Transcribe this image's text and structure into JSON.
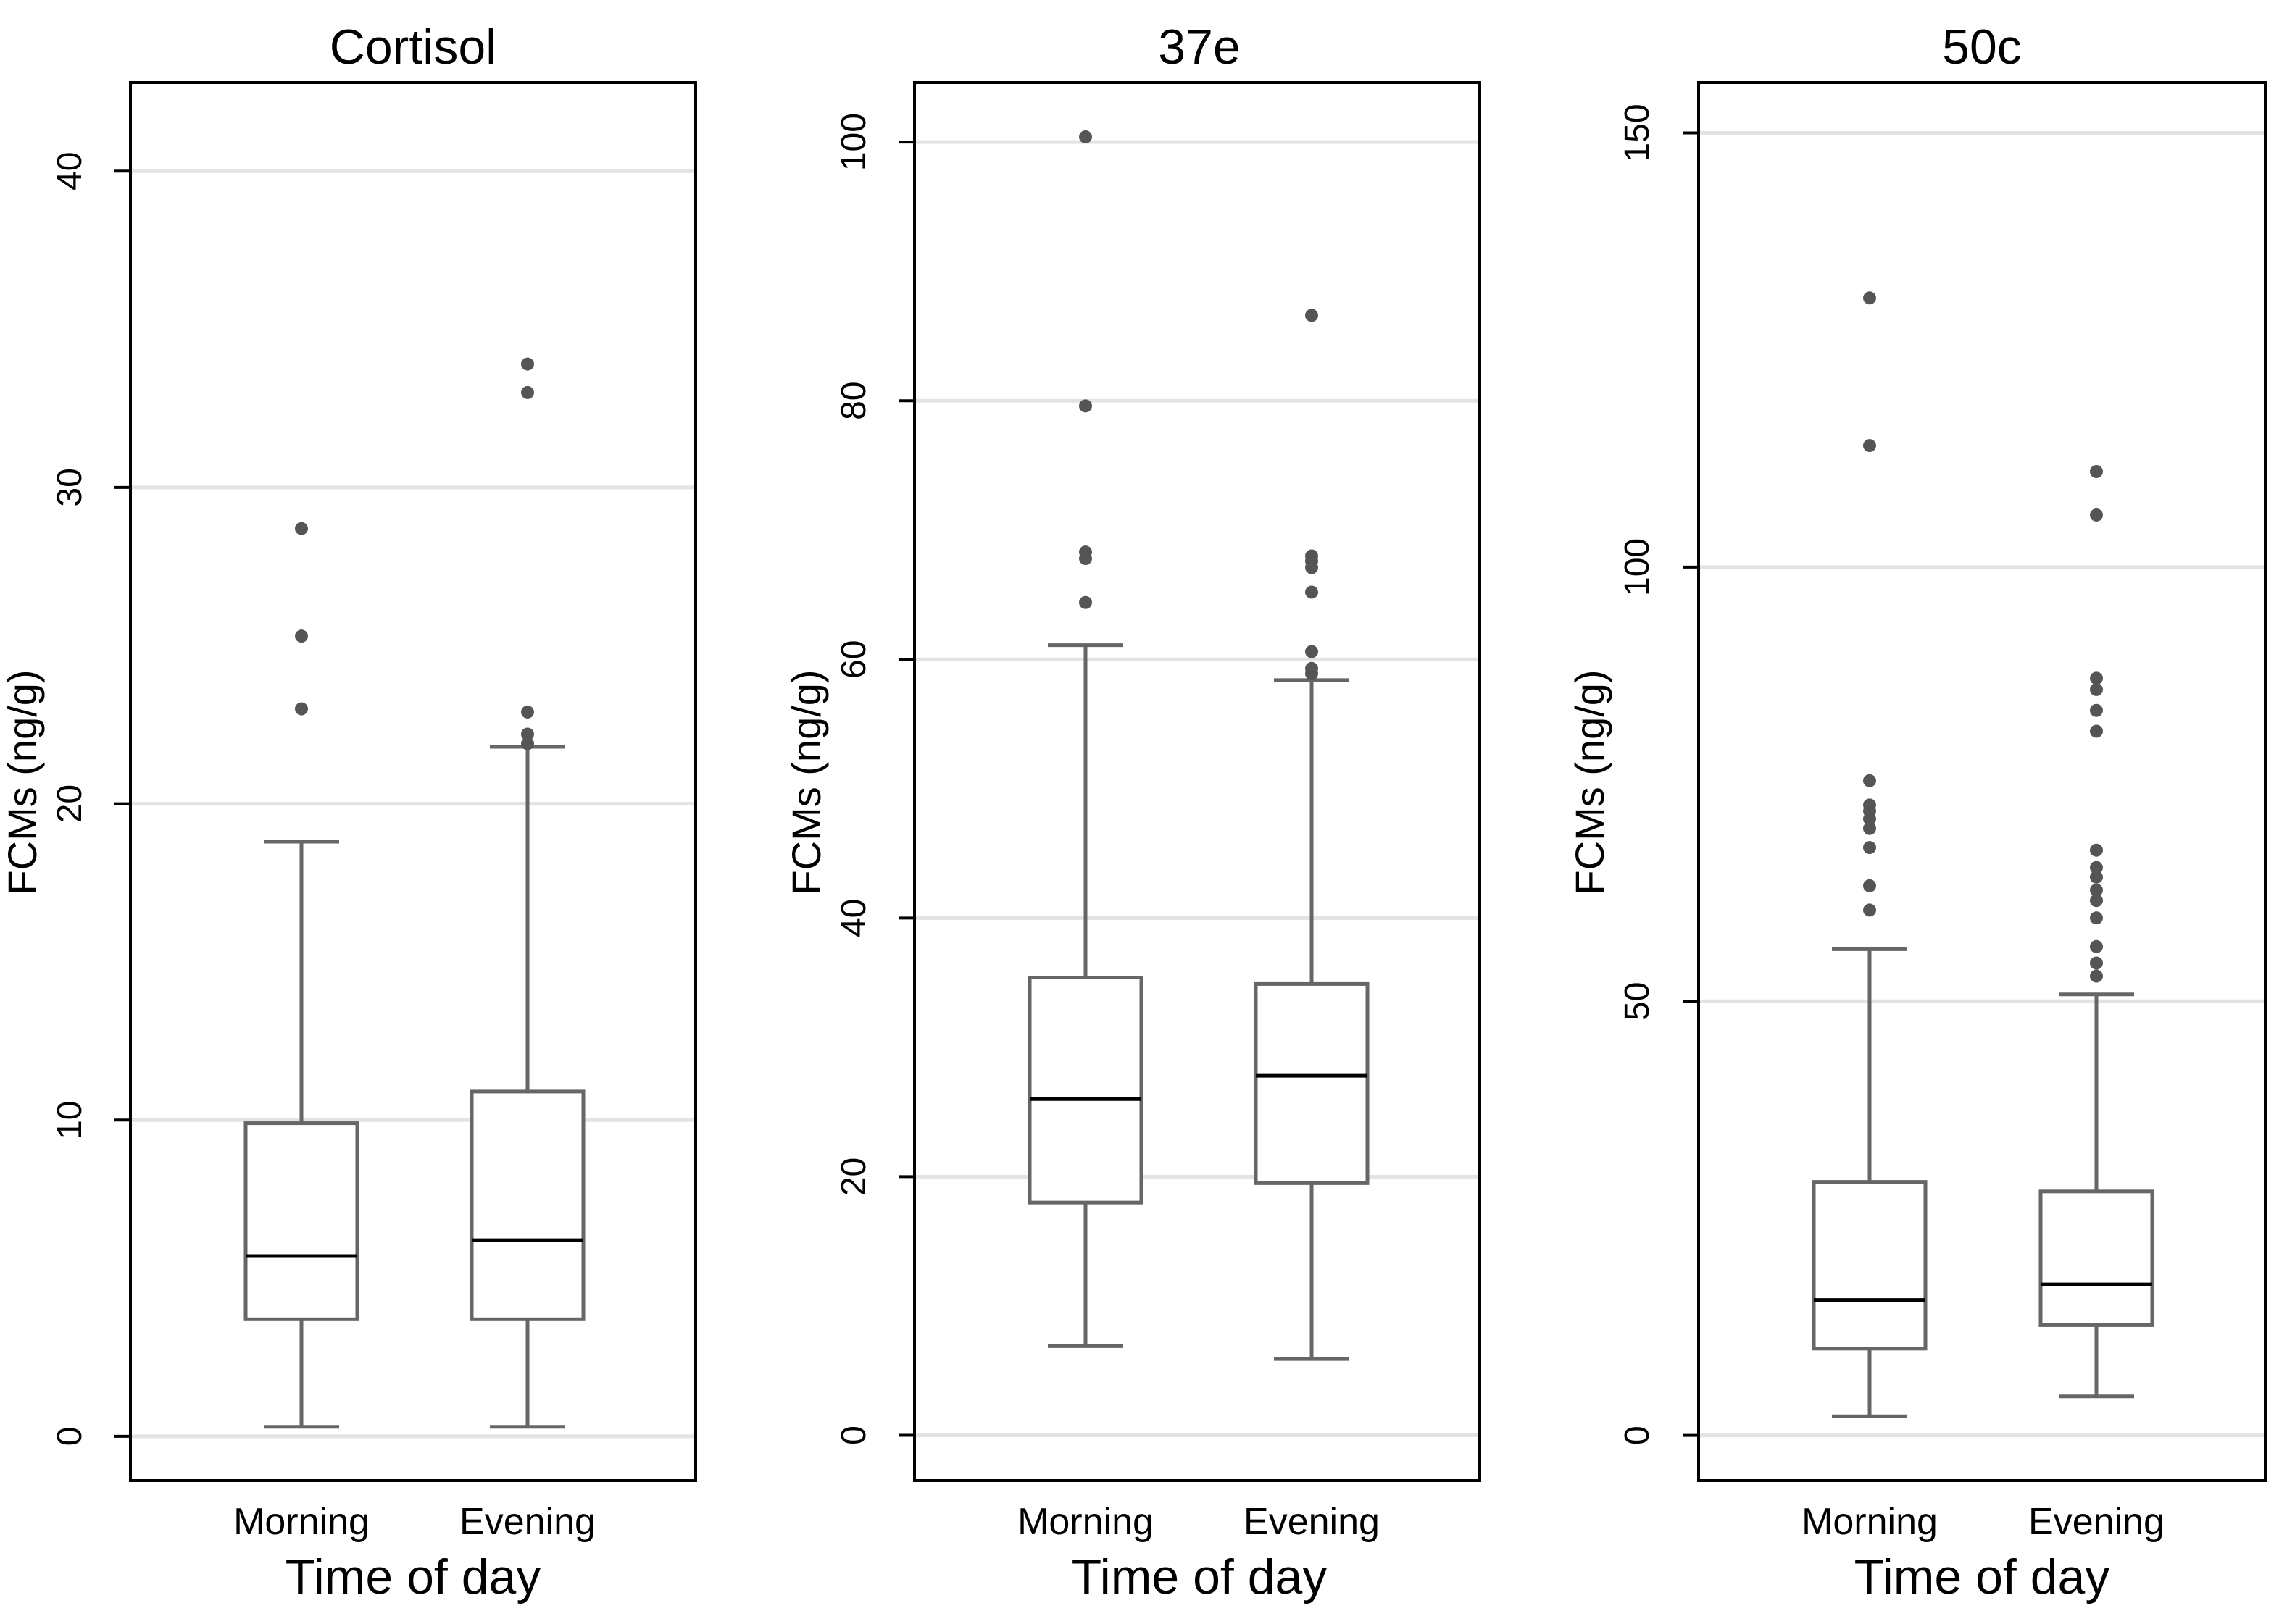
{
  "chart_data": [
    {
      "type": "boxplot",
      "title": "Cortisol",
      "xlabel": "Time of day",
      "ylabel": "FCMs (ng/g)",
      "ylim": [
        -1.4,
        42.8
      ],
      "yticks": [
        0,
        10,
        20,
        30,
        40
      ],
      "grid": true,
      "categories": [
        "Morning",
        "Evening"
      ],
      "boxes": [
        {
          "name": "Morning",
          "whisker_low": 0.3,
          "q1": 3.7,
          "median": 5.7,
          "q3": 9.9,
          "whisker_high": 18.8,
          "outliers": [
            23.0,
            25.3,
            28.7
          ]
        },
        {
          "name": "Evening",
          "whisker_low": 0.3,
          "q1": 3.7,
          "median": 6.2,
          "q3": 10.9,
          "whisker_high": 21.8,
          "outliers": [
            21.9,
            22.2,
            22.9,
            33.0,
            33.9
          ]
        }
      ]
    },
    {
      "type": "boxplot",
      "title": "37e",
      "xlabel": "Time of day",
      "ylabel": "FCMs (ng/g)",
      "ylim": [
        -3.5,
        104.6
      ],
      "yticks": [
        0,
        20,
        40,
        60,
        80,
        100
      ],
      "grid": true,
      "categories": [
        "Morning",
        "Evening"
      ],
      "boxes": [
        {
          "name": "Morning",
          "whisker_low": 6.9,
          "q1": 18.0,
          "median": 26.0,
          "q3": 35.4,
          "whisker_high": 61.1,
          "outliers": [
            64.4,
            67.8,
            68.3,
            79.6,
            100.4
          ]
        },
        {
          "name": "Evening",
          "whisker_low": 5.9,
          "q1": 19.5,
          "median": 27.8,
          "q3": 34.9,
          "whisker_high": 58.4,
          "outliers": [
            58.9,
            59.3,
            60.6,
            65.2,
            67.1,
            67.6,
            68.0,
            86.6
          ]
        }
      ]
    },
    {
      "type": "boxplot",
      "title": "50c",
      "xlabel": "Time of day",
      "ylabel": "FCMs (ng/g)",
      "ylim": [
        -5.2,
        155.8
      ],
      "yticks": [
        0,
        50,
        100,
        150
      ],
      "grid": true,
      "categories": [
        "Morning",
        "Evening"
      ],
      "boxes": [
        {
          "name": "Morning",
          "whisker_low": 2.2,
          "q1": 10.0,
          "median": 15.6,
          "q3": 29.2,
          "whisker_high": 56.0,
          "outliers": [
            60.5,
            63.3,
            67.7,
            69.9,
            71.0,
            71.9,
            72.6,
            75.4,
            114.0,
            131.0
          ]
        },
        {
          "name": "Evening",
          "whisker_low": 4.5,
          "q1": 12.7,
          "median": 17.4,
          "q3": 28.1,
          "whisker_high": 50.8,
          "outliers": [
            52.9,
            54.4,
            56.3,
            59.6,
            61.6,
            62.8,
            64.3,
            65.4,
            67.4,
            81.1,
            83.5,
            85.9,
            87.2,
            111.0,
            106.0
          ]
        }
      ]
    }
  ]
}
